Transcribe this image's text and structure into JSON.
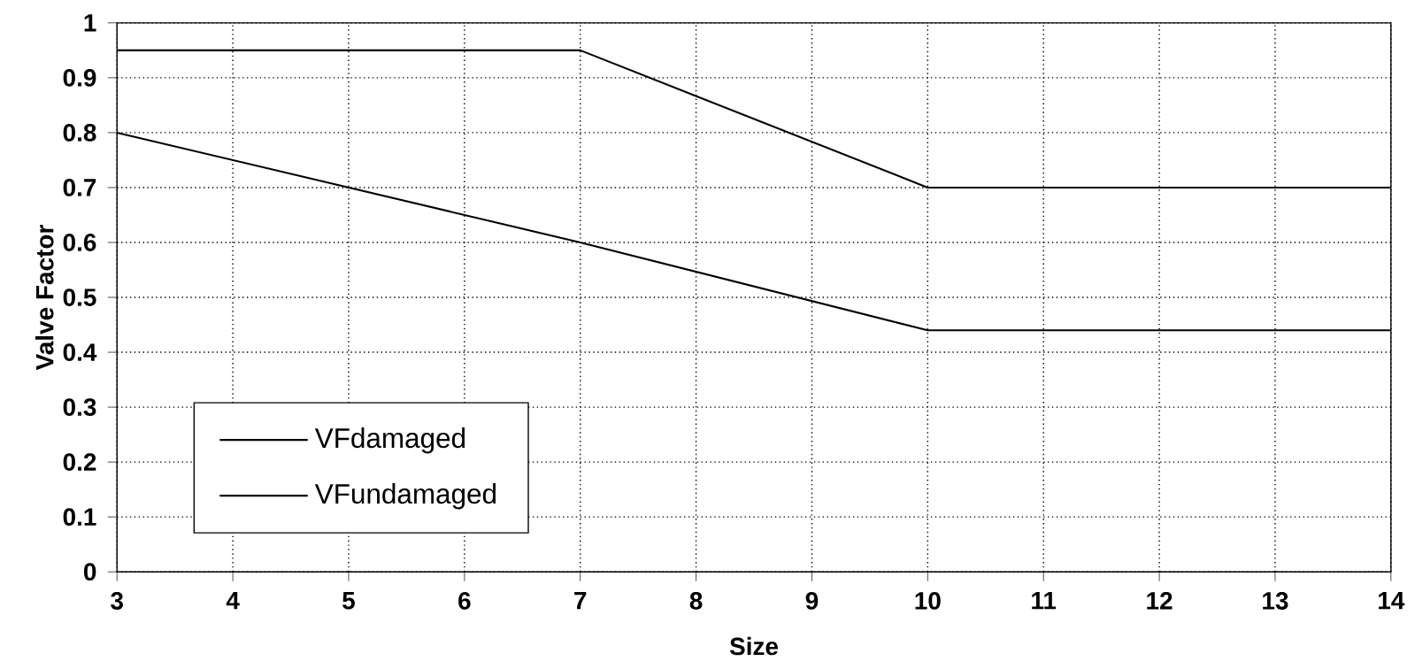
{
  "chart_data": {
    "type": "line",
    "xlabel": "Size",
    "ylabel": "Valve Factor",
    "x": [
      3,
      7,
      10,
      14
    ],
    "series": [
      {
        "name": "VFdamaged",
        "color": "#000000",
        "values": [
          0.95,
          0.95,
          0.7,
          0.7
        ]
      },
      {
        "name": "VFundamaged",
        "color": "#000000",
        "values": [
          0.8,
          0.6,
          0.44,
          0.44
        ]
      }
    ],
    "xlim": [
      3,
      14
    ],
    "xticks": [
      3,
      4,
      5,
      6,
      7,
      8,
      9,
      10,
      11,
      12,
      13,
      14
    ],
    "ylim": [
      0,
      1
    ],
    "yticks": [
      0,
      0.1,
      0.2,
      0.3,
      0.4,
      0.5,
      0.6,
      0.7,
      0.8,
      0.9,
      1
    ],
    "grid": true,
    "legend": "bottom left",
    "marker": "none",
    "line_style": "solid"
  }
}
